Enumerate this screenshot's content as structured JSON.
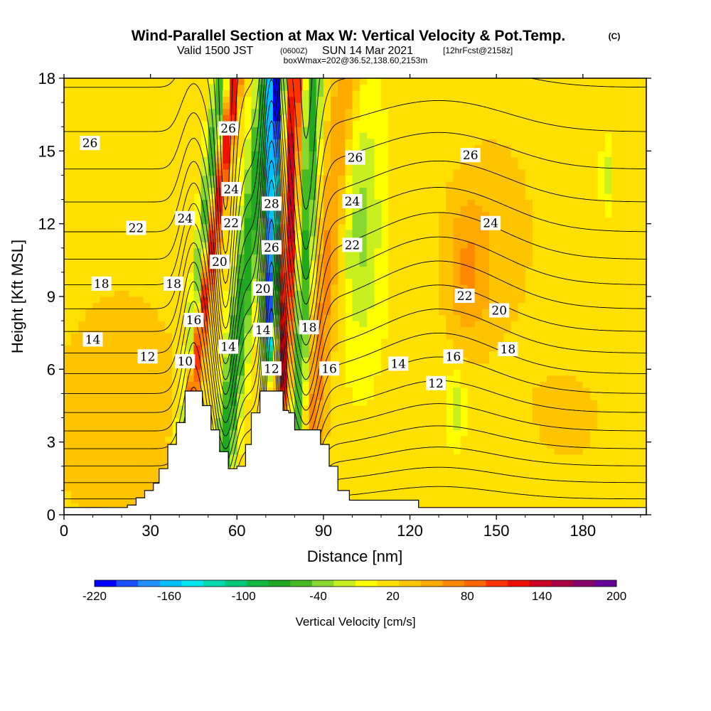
{
  "chart_data": {
    "type": "contour",
    "title": "Wind-Parallel Section at Max W: Vertical Velocity & Pot.Temp.",
    "title_mark": "(C)",
    "subtitle_main": "Valid 1500 JST",
    "subtitle_zulu": "(0600Z)",
    "subtitle_date": "SUN 14 Mar 2021",
    "subtitle_fcst": "[12hrFcst@2158z]",
    "subtitle2": "boxWmax=202@36.52,138.60,2153m",
    "xlabel": "Distance [nm]",
    "ylabel": "Height [Kft MSL]",
    "xlim": [
      0,
      202
    ],
    "ylim": [
      0,
      18
    ],
    "xticks": [
      "0",
      "30",
      "60",
      "90",
      "120",
      "150",
      "180"
    ],
    "yticks": [
      "0",
      "3",
      "6",
      "9",
      "12",
      "15",
      "18"
    ],
    "colorbar": {
      "label": "Vertical Velocity [cm/s]",
      "tick_labels": [
        "-220",
        "-160",
        "-100",
        "-40",
        "20",
        "80",
        "140",
        "200"
      ],
      "levels_min": -220,
      "levels_max": 200,
      "colors": [
        "#0000ff",
        "#1a4fff",
        "#1e90ff",
        "#00bfff",
        "#00e5ee",
        "#00d8b0",
        "#00c878",
        "#10b840",
        "#20a820",
        "#44bb22",
        "#88d830",
        "#c8f020",
        "#ffff00",
        "#ffe000",
        "#ffc400",
        "#ffaa00",
        "#ff8800",
        "#ff6600",
        "#ff3300",
        "#ee1100",
        "#cc0022",
        "#aa0044",
        "#88006a",
        "#660099"
      ]
    },
    "series": [
      {
        "name": "Vertical Velocity",
        "cells_cm_s": [
          {
            "x": [
              38,
              46
            ],
            "y": [
              5,
              18
            ],
            "w": -60
          },
          {
            "x": [
              45,
              53
            ],
            "y": [
              6,
              18
            ],
            "w": 150
          },
          {
            "x": [
              54,
              66
            ],
            "y": [
              5,
              18
            ],
            "w": -90
          },
          {
            "x": [
              66,
              74
            ],
            "y": [
              7,
              18
            ],
            "w": -190
          },
          {
            "x": [
              74,
              82
            ],
            "y": [
              5,
              18
            ],
            "w": 130
          },
          {
            "x": [
              82,
              92
            ],
            "y": [
              4,
              18
            ],
            "w": 70
          },
          {
            "x": [
              86,
              98
            ],
            "y": [
              1,
              11
            ],
            "w": -90
          },
          {
            "x": [
              98,
              112
            ],
            "y": [
              7,
              18
            ],
            "w": -40
          },
          {
            "x": [
              130,
              145
            ],
            "y": [
              3,
              6
            ],
            "w": -40
          },
          {
            "x": [
              130,
              160
            ],
            "y": [
              8,
              16
            ],
            "w": 60
          },
          {
            "x": [
              186,
              190
            ],
            "y": [
              13,
              15
            ],
            "w": -40
          }
        ]
      },
      {
        "name": "Pot.Temp.",
        "contour_labels": [
          {
            "text": "26",
            "x": 9,
            "y": 15.3
          },
          {
            "text": "22",
            "x": 25,
            "y": 11.8
          },
          {
            "text": "18",
            "x": 13,
            "y": 9.5
          },
          {
            "text": "14",
            "x": 10,
            "y": 7.2
          },
          {
            "text": "12",
            "x": 29,
            "y": 6.5
          },
          {
            "text": "10",
            "x": 42,
            "y": 6.3
          },
          {
            "text": "24",
            "x": 42,
            "y": 12.2
          },
          {
            "text": "18",
            "x": 38,
            "y": 9.5
          },
          {
            "text": "16",
            "x": 45,
            "y": 8.0
          },
          {
            "text": "26",
            "x": 57,
            "y": 15.9
          },
          {
            "text": "24",
            "x": 58,
            "y": 13.4
          },
          {
            "text": "22",
            "x": 58,
            "y": 12.0
          },
          {
            "text": "20",
            "x": 54,
            "y": 10.4
          },
          {
            "text": "14",
            "x": 57,
            "y": 6.9
          },
          {
            "text": "28",
            "x": 72,
            "y": 12.8
          },
          {
            "text": "26",
            "x": 72,
            "y": 11.0
          },
          {
            "text": "20",
            "x": 69,
            "y": 9.3
          },
          {
            "text": "14",
            "x": 69,
            "y": 7.6
          },
          {
            "text": "12",
            "x": 72,
            "y": 6.0
          },
          {
            "text": "18",
            "x": 85,
            "y": 7.7
          },
          {
            "text": "16",
            "x": 92,
            "y": 6.0
          },
          {
            "text": "26",
            "x": 101,
            "y": 14.7
          },
          {
            "text": "24",
            "x": 100,
            "y": 12.9
          },
          {
            "text": "22",
            "x": 100,
            "y": 11.1
          },
          {
            "text": "14",
            "x": 116,
            "y": 6.2
          },
          {
            "text": "12",
            "x": 129,
            "y": 5.4
          },
          {
            "text": "16",
            "x": 135,
            "y": 6.5
          },
          {
            "text": "26",
            "x": 141,
            "y": 14.8
          },
          {
            "text": "24",
            "x": 148,
            "y": 12.0
          },
          {
            "text": "22",
            "x": 139,
            "y": 9.0
          },
          {
            "text": "20",
            "x": 151,
            "y": 8.4
          },
          {
            "text": "18",
            "x": 154,
            "y": 6.8
          }
        ]
      },
      {
        "name": "Terrain",
        "profile_kft": [
          [
            0,
            0.3
          ],
          [
            15,
            0.3
          ],
          [
            22,
            0.4
          ],
          [
            25,
            0.7
          ],
          [
            28,
            1.0
          ],
          [
            31,
            1.3
          ],
          [
            33,
            1.9
          ],
          [
            36,
            2.9
          ],
          [
            39,
            3.8
          ],
          [
            42,
            5.1
          ],
          [
            46,
            5.1
          ],
          [
            48,
            4.5
          ],
          [
            51,
            3.5
          ],
          [
            54,
            2.6
          ],
          [
            57,
            1.9
          ],
          [
            60,
            2.0
          ],
          [
            63,
            2.9
          ],
          [
            65,
            4.2
          ],
          [
            68,
            5.1
          ],
          [
            74,
            5.1
          ],
          [
            76,
            4.3
          ],
          [
            78,
            4.2
          ],
          [
            80,
            3.5
          ],
          [
            86,
            3.5
          ],
          [
            89,
            2.9
          ],
          [
            92,
            2.0
          ],
          [
            95,
            1.0
          ],
          [
            99,
            0.6
          ],
          [
            121,
            0.6
          ],
          [
            123,
            0.3
          ],
          [
            202,
            0.3
          ]
        ]
      }
    ],
    "grid": false,
    "legend": "colorbar-bottom"
  }
}
